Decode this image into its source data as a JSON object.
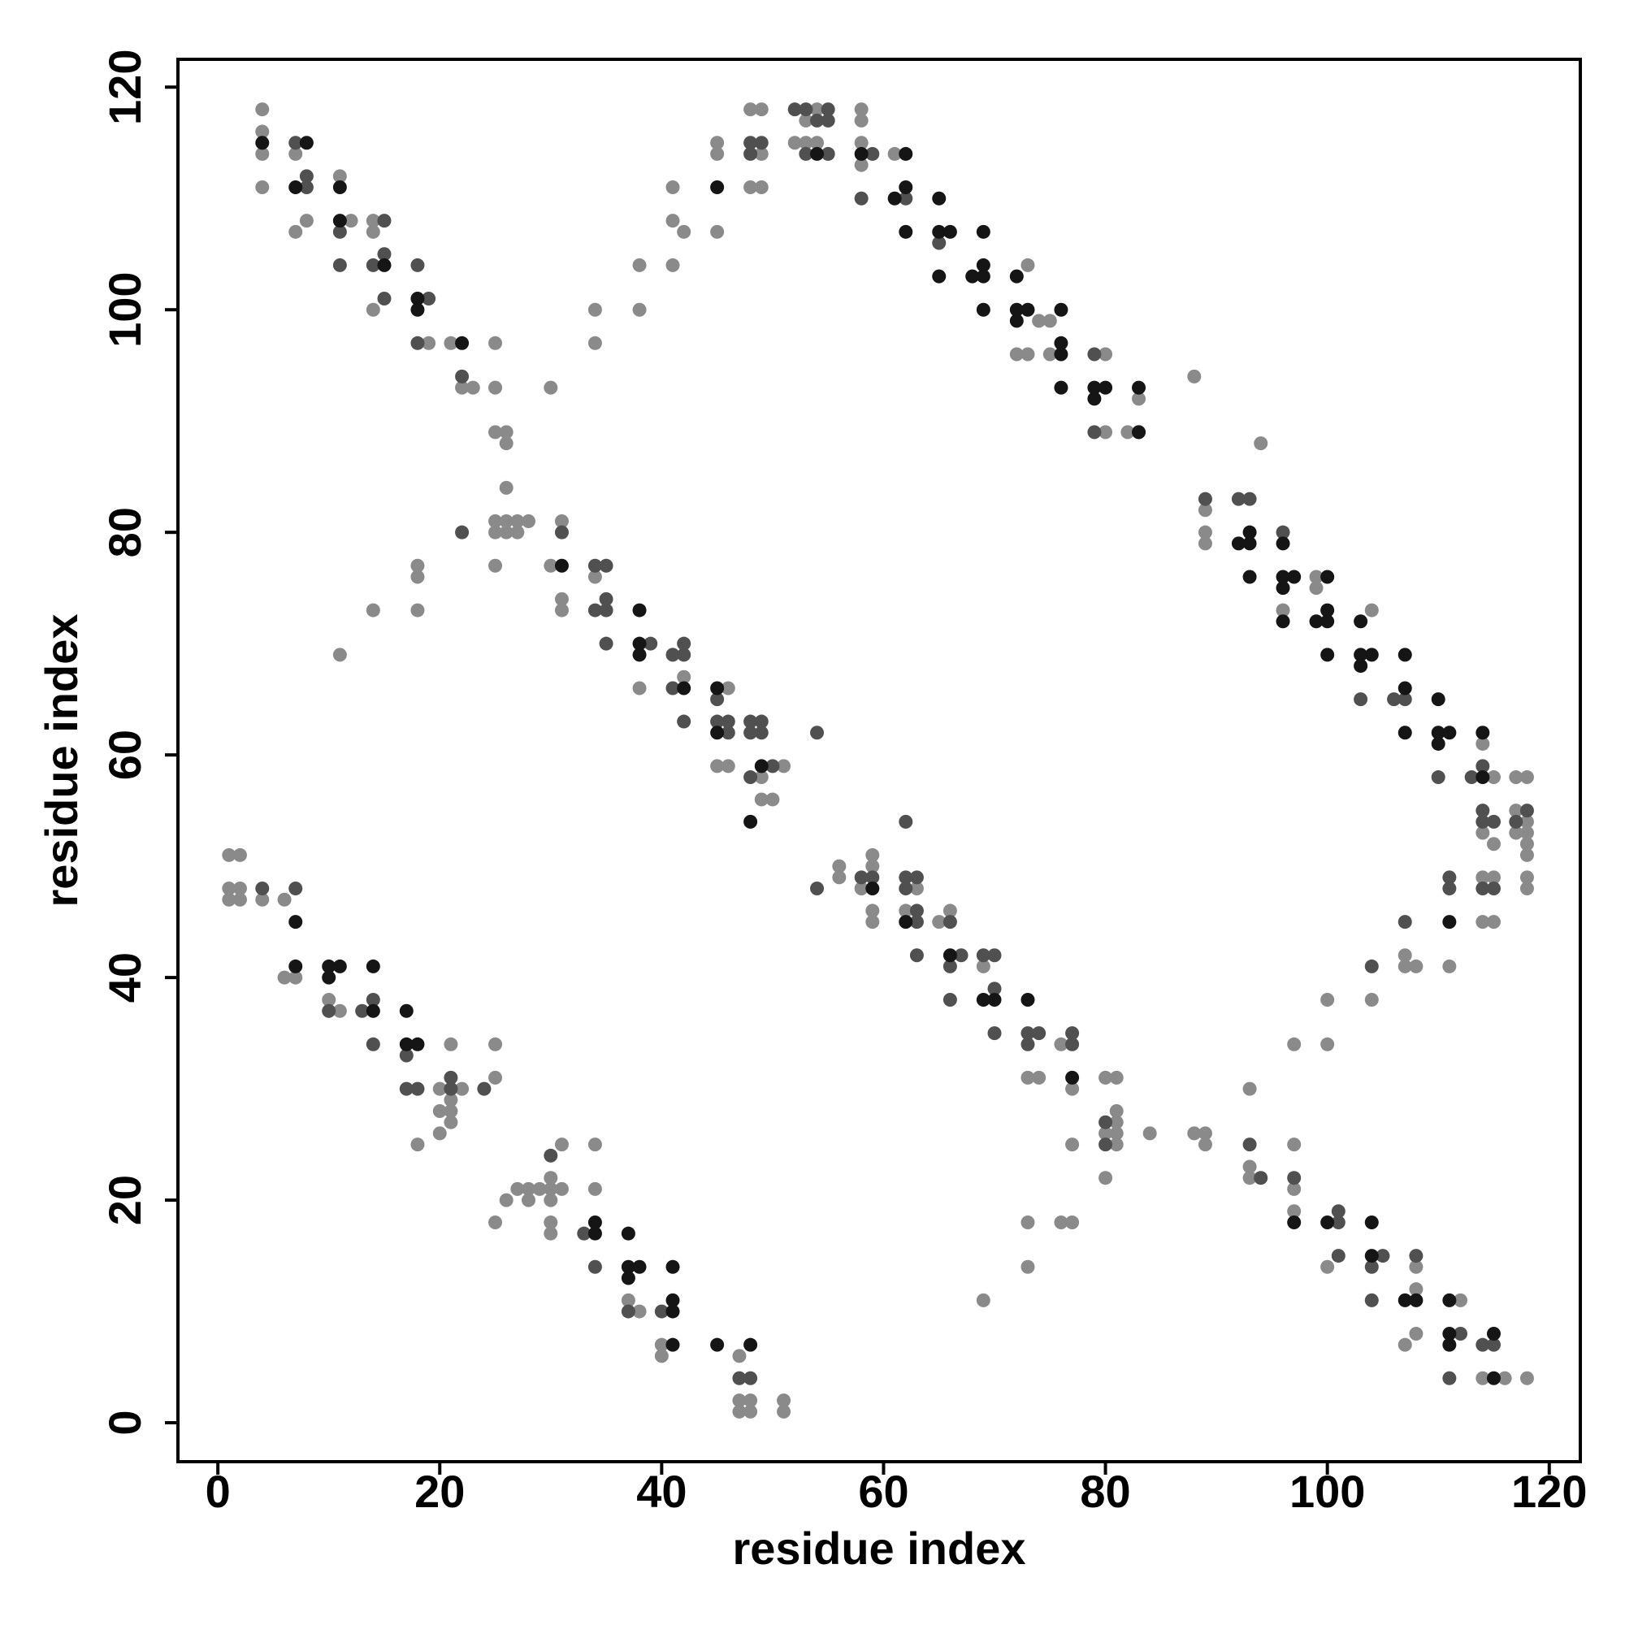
{
  "chart_data": {
    "type": "scatter",
    "xlabel": "residue index",
    "ylabel": "residue index",
    "xlim": [
      -3.6,
      122.8
    ],
    "ylim": [
      -3.5,
      122.5
    ],
    "xticks": [
      0,
      20,
      40,
      60,
      80,
      100,
      120
    ],
    "yticks": [
      0,
      20,
      40,
      60,
      80,
      100,
      120
    ],
    "grid": false,
    "series": [
      {
        "color": "#8a8a8a",
        "x": [
          4,
          4,
          4,
          4,
          7,
          7,
          8,
          11,
          12,
          14,
          14,
          14,
          19,
          21,
          22,
          23,
          25,
          25,
          25,
          26,
          26,
          26,
          25,
          26,
          27,
          28,
          26,
          27,
          25,
          25,
          11,
          14,
          18,
          18,
          18,
          30,
          34,
          34,
          38,
          38,
          41,
          41,
          42,
          41,
          45,
          45,
          45,
          48,
          49,
          48,
          49,
          49,
          54,
          53,
          52,
          53,
          54,
          58,
          58,
          58,
          58,
          61,
          73,
          74,
          75,
          72,
          73,
          75,
          80,
          80,
          82,
          83,
          88,
          94,
          89,
          89,
          89,
          96,
          99,
          99,
          104,
          114,
          115,
          115,
          117,
          118,
          117,
          118,
          117,
          118,
          118,
          118,
          118,
          118,
          114,
          115,
          114,
          115,
          111,
          107,
          107,
          108,
          104,
          100,
          100,
          97,
          114,
          30,
          31,
          31,
          31,
          34,
          38,
          42,
          46,
          45,
          46,
          51,
          49,
          49,
          50,
          56,
          56,
          59,
          59,
          58,
          59,
          59,
          63,
          62,
          65,
          66,
          69,
          73,
          74,
          76,
          77,
          77,
          80,
          81,
          81,
          80,
          81,
          81,
          81,
          80,
          84,
          88,
          89,
          89,
          93,
          93,
          93,
          97,
          97,
          97,
          100,
          107,
          108,
          108,
          108,
          112,
          114,
          116,
          118,
          73,
          73,
          76,
          77,
          69,
          1,
          2,
          1,
          2,
          1,
          2,
          4,
          6,
          6,
          7,
          10,
          11,
          18,
          20,
          20,
          20,
          21,
          21,
          21,
          21,
          22,
          25,
          25,
          25,
          26,
          27,
          28,
          29,
          28,
          30,
          30,
          30,
          31,
          31,
          30,
          30,
          34,
          34,
          37,
          38,
          40,
          40,
          47,
          47,
          48,
          47,
          48,
          51,
          51
        ],
        "values": [
          118,
          116,
          114,
          111,
          114,
          107,
          108,
          112,
          108,
          108,
          107,
          100,
          97,
          97,
          93,
          93,
          97,
          93,
          89,
          89,
          88,
          84,
          81,
          81,
          81,
          81,
          80,
          80,
          80,
          77,
          69,
          73,
          77,
          76,
          73,
          93,
          100,
          97,
          104,
          100,
          111,
          108,
          107,
          104,
          115,
          114,
          107,
          118,
          118,
          111,
          111,
          114,
          118,
          117,
          115,
          115,
          115,
          118,
          117,
          115,
          113,
          114,
          104,
          99,
          99,
          96,
          96,
          96,
          96,
          89,
          89,
          92,
          94,
          88,
          82,
          80,
          79,
          73,
          76,
          75,
          73,
          53,
          52,
          58,
          58,
          58,
          55,
          54,
          53,
          53,
          52,
          51,
          49,
          48,
          49,
          49,
          45,
          45,
          41,
          42,
          41,
          41,
          38,
          38,
          34,
          34,
          61,
          77,
          81,
          74,
          73,
          76,
          66,
          67,
          66,
          59,
          59,
          59,
          58,
          56,
          56,
          50,
          49,
          51,
          50,
          48,
          46,
          45,
          48,
          46,
          45,
          46,
          41,
          31,
          31,
          34,
          30,
          25,
          31,
          31,
          28,
          26,
          26,
          27,
          25,
          22,
          26,
          26,
          26,
          25,
          30,
          23,
          22,
          25,
          21,
          19,
          14,
          7,
          14,
          12,
          8,
          11,
          4,
          4,
          4,
          18,
          14,
          18,
          18,
          11,
          51,
          51,
          48,
          48,
          47,
          47,
          47,
          47,
          40,
          40,
          38,
          37,
          25,
          30,
          28,
          26,
          34,
          29,
          28,
          27,
          30,
          34,
          31,
          18,
          20,
          21,
          21,
          21,
          20,
          22,
          21,
          20,
          25,
          21,
          18,
          17,
          25,
          21,
          11,
          10,
          7,
          6,
          6,
          2,
          2,
          1,
          1,
          2,
          1
        ]
      },
      {
        "color": "#505050",
        "x": [
          7,
          8,
          8,
          11,
          11,
          14,
          15,
          15,
          15,
          18,
          18,
          19,
          22,
          48,
          49,
          48,
          52,
          53,
          55,
          54,
          55,
          53,
          55,
          58,
          59,
          62,
          65,
          79,
          79,
          83,
          89,
          92,
          93,
          96,
          103,
          106,
          107,
          110,
          113,
          114,
          114,
          115,
          114,
          118,
          117,
          114,
          115,
          111,
          111,
          107,
          104,
          104,
          22,
          31,
          34,
          35,
          34,
          35,
          35,
          35,
          39,
          41,
          42,
          42,
          41,
          42,
          45,
          46,
          45,
          48,
          49,
          48,
          49,
          46,
          48,
          50,
          54,
          54,
          58,
          59,
          62,
          62,
          63,
          62,
          63,
          63,
          63,
          66,
          66,
          67,
          66,
          69,
          70,
          70,
          70,
          73,
          74,
          73,
          77,
          77,
          80,
          80,
          4,
          7,
          10,
          13,
          14,
          14,
          17,
          17,
          18,
          21,
          21,
          24,
          30,
          33,
          34,
          37,
          40,
          47,
          48,
          93,
          94,
          97,
          101,
          101,
          101,
          104,
          105,
          108,
          111,
          112,
          114,
          115
        ],
        "values": [
          115,
          112,
          111,
          107,
          104,
          104,
          108,
          105,
          101,
          104,
          97,
          101,
          94,
          115,
          115,
          114,
          118,
          118,
          118,
          117,
          117,
          114,
          114,
          110,
          114,
          110,
          106,
          96,
          89,
          89,
          83,
          83,
          83,
          80,
          65,
          65,
          65,
          58,
          58,
          55,
          54,
          54,
          59,
          55,
          54,
          48,
          48,
          48,
          49,
          45,
          41,
          11,
          80,
          80,
          77,
          77,
          73,
          73,
          74,
          70,
          70,
          69,
          69,
          70,
          66,
          63,
          63,
          63,
          65,
          63,
          63,
          62,
          62,
          62,
          58,
          59,
          62,
          48,
          49,
          49,
          54,
          49,
          49,
          48,
          46,
          45,
          42,
          45,
          41,
          42,
          38,
          42,
          42,
          39,
          35,
          35,
          35,
          34,
          35,
          34,
          25,
          27,
          48,
          48,
          37,
          37,
          38,
          34,
          33,
          30,
          30,
          31,
          30,
          30,
          24,
          17,
          14,
          10,
          10,
          4,
          4,
          25,
          22,
          22,
          19,
          18,
          15,
          14,
          15,
          15,
          4,
          8,
          7,
          7
        ]
      },
      {
        "color": "#151515",
        "x": [
          4,
          7,
          8,
          11,
          11,
          15,
          18,
          18,
          22,
          45,
          54,
          58,
          62,
          62,
          61,
          62,
          65,
          65,
          66,
          65,
          68,
          69,
          69,
          69,
          69,
          72,
          72,
          73,
          72,
          76,
          76,
          76,
          76,
          79,
          80,
          79,
          83,
          83,
          93,
          92,
          93,
          96,
          96,
          97,
          96,
          100,
          99,
          100,
          100,
          100,
          103,
          103,
          104,
          107,
          107,
          107,
          110,
          110,
          111,
          114,
          114,
          31,
          38,
          38,
          38,
          42,
          45,
          45,
          49,
          48,
          59,
          62,
          66,
          69,
          70,
          73,
          77,
          7,
          7,
          10,
          11,
          10,
          14,
          14,
          17,
          17,
          18,
          34,
          34,
          37,
          37,
          38,
          37,
          41,
          41,
          41,
          41,
          45,
          48,
          97,
          100,
          104,
          104,
          107,
          108,
          111,
          111,
          111,
          115,
          115,
          93,
          96,
          103,
          110,
          111
        ],
        "values": [
          115,
          111,
          115,
          111,
          108,
          104,
          101,
          100,
          97,
          111,
          114,
          114,
          114,
          111,
          110,
          107,
          110,
          107,
          107,
          103,
          103,
          107,
          104,
          103,
          100,
          103,
          100,
          100,
          99,
          100,
          97,
          96,
          93,
          93,
          93,
          92,
          93,
          89,
          80,
          79,
          79,
          79,
          76,
          76,
          75,
          76,
          72,
          72,
          73,
          69,
          72,
          69,
          69,
          69,
          66,
          62,
          65,
          62,
          62,
          62,
          58,
          77,
          73,
          70,
          69,
          66,
          66,
          62,
          59,
          54,
          48,
          45,
          42,
          38,
          38,
          38,
          31,
          45,
          41,
          41,
          41,
          40,
          41,
          37,
          37,
          34,
          34,
          18,
          17,
          17,
          14,
          14,
          13,
          14,
          11,
          10,
          7,
          7,
          7,
          18,
          18,
          18,
          15,
          11,
          11,
          11,
          8,
          7,
          8,
          4,
          76,
          72,
          68,
          61,
          45
        ]
      }
    ]
  }
}
